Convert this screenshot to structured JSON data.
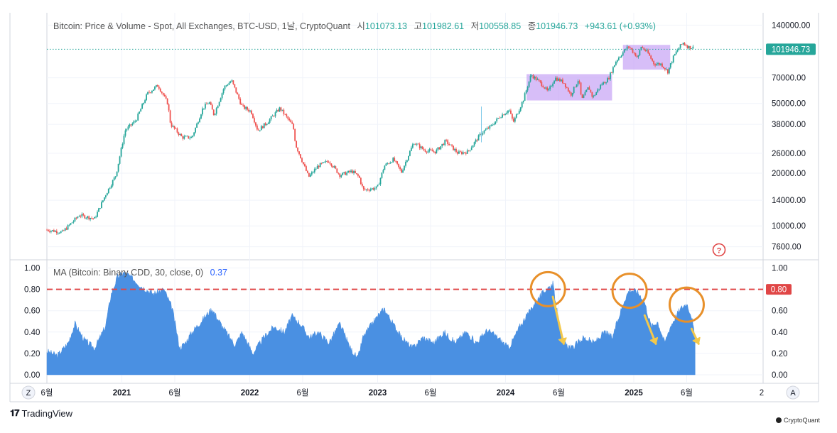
{
  "header": {
    "title": "Bitcoin: Price & Volume - Spot, All Exchanges, BTC-USD, 1날, CryptoQuant",
    "open_label": "시",
    "open": "101073.13",
    "high_label": "고",
    "high": "101982.61",
    "low_label": "저",
    "low": "100558.85",
    "close_label": "종",
    "close": "101946.73",
    "change": "+943.61 (+0.93%)"
  },
  "indicator": {
    "label": "MA (Bitcoin: Binary CDD, 30, close, 0)",
    "value": "0.37"
  },
  "price_badge": "101946.73",
  "threshold_badge": "0.80",
  "branding": {
    "tradingview": "TradingView",
    "cryptoquant": "CryptoQuant"
  },
  "controls": {
    "zoom": "Z",
    "auto": "A"
  },
  "colors": {
    "up": "#26a69a",
    "down": "#ef5350",
    "area": "#4a90e2",
    "highlight": "#c9a8f5",
    "circle": "#e8902a",
    "arrow": "#f3c84b",
    "threshold": "#e04646",
    "price_line": "#26a69a"
  },
  "chart_data": [
    {
      "type": "line",
      "title": "Bitcoin: Price & Volume - Spot, All Exchanges, BTC-USD, 1날, CryptoQuant",
      "scale": "log",
      "y_ticks": [
        140000,
        70000,
        50000,
        38000,
        26000,
        20000,
        14000,
        10000,
        7600
      ],
      "y_tick_labels": [
        "140000.00",
        "70000.00",
        "50000.00",
        "38000.00",
        "26000.00",
        "20000.00",
        "14000.00",
        "10000.00",
        "7600.00"
      ],
      "ylim": [
        6900,
        150000
      ],
      "x": [
        "2020-06-01",
        "2020-07-15",
        "2020-09-01",
        "2020-10-15",
        "2020-11-15",
        "2020-12-15",
        "2021-01-10",
        "2021-02-10",
        "2021-03-15",
        "2021-04-14",
        "2021-05-12",
        "2021-05-20",
        "2021-06-22",
        "2021-07-20",
        "2021-08-20",
        "2021-09-07",
        "2021-09-21",
        "2021-10-20",
        "2021-11-10",
        "2021-12-10",
        "2022-01-05",
        "2022-01-24",
        "2022-02-20",
        "2022-03-28",
        "2022-05-05",
        "2022-05-12",
        "2022-06-18",
        "2022-07-15",
        "2022-08-15",
        "2022-09-15",
        "2022-10-20",
        "2022-11-09",
        "2022-11-21",
        "2022-12-31",
        "2023-01-20",
        "2023-02-15",
        "2023-03-10",
        "2023-04-14",
        "2023-05-15",
        "2023-06-15",
        "2023-07-14",
        "2023-08-18",
        "2023-09-15",
        "2023-10-25",
        "2023-11-20",
        "2023-12-15",
        "2024-01-11",
        "2024-01-23",
        "2024-02-20",
        "2024-03-14",
        "2024-04-15",
        "2024-05-01",
        "2024-05-21",
        "2024-06-15",
        "2024-07-05",
        "2024-07-28",
        "2024-08-05",
        "2024-08-25",
        "2024-09-06",
        "2024-09-30",
        "2024-10-20",
        "2024-11-12",
        "2024-12-05",
        "2024-12-17",
        "2025-01-13",
        "2025-01-21",
        "2025-02-10",
        "2025-02-28",
        "2025-03-20",
        "2025-04-08",
        "2025-04-25",
        "2025-05-10",
        "2025-05-22",
        "2025-06-05",
        "2025-06-20"
      ],
      "series": [
        {
          "values": [
            9500,
            9200,
            11500,
            11000,
            15000,
            19500,
            35000,
            40000,
            57000,
            63500,
            50000,
            38000,
            32000,
            32000,
            47000,
            51000,
            43000,
            62000,
            67500,
            48000,
            45000,
            35000,
            39000,
            47000,
            37000,
            29000,
            19000,
            22000,
            23500,
            19500,
            20500,
            19000,
            16000,
            16500,
            22000,
            24000,
            20300,
            30000,
            27000,
            26500,
            30500,
            26000,
            26500,
            34000,
            37000,
            42000,
            46000,
            39000,
            52000,
            73000,
            64000,
            58000,
            70000,
            66000,
            56000,
            69000,
            52000,
            62000,
            54000,
            64000,
            69000,
            88000,
            100000,
            106000,
            91000,
            106000,
            97000,
            84000,
            84000,
            76000,
            93000,
            104000,
            111000,
            105000,
            104000
          ]
        }
      ],
      "highlights": [
        {
          "x_start": "2024-03-01",
          "x_end": "2024-10-31",
          "y_low": 52000,
          "y_high": 73500
        },
        {
          "x_start": "2024-12-01",
          "x_end": "2025-04-15",
          "y_low": 78000,
          "y_high": 108000
        }
      ],
      "last_price": 101946.73,
      "annotation": "?"
    },
    {
      "type": "area",
      "title": "MA (Bitcoin: Binary CDD, 30, close, 0)",
      "y_ticks": [
        1.0,
        0.8,
        0.6,
        0.4,
        0.2,
        0.0
      ],
      "y_tick_labels_left": [
        "1.00",
        "0.80",
        "0.60",
        "0.40",
        "0.20",
        "0.00"
      ],
      "y_tick_labels_right": [
        "1.00",
        "0.80",
        "0.60",
        "0.40",
        "0.20",
        "0.00"
      ],
      "ylim": [
        -0.04,
        1.05
      ],
      "threshold": 0.8,
      "x": [
        "2020-06-01",
        "2020-07-01",
        "2020-08-01",
        "2020-08-20",
        "2020-09-15",
        "2020-10-15",
        "2020-11-15",
        "2020-12-01",
        "2020-12-20",
        "2021-01-10",
        "2021-02-01",
        "2021-03-01",
        "2021-04-01",
        "2021-05-01",
        "2021-05-25",
        "2021-06-15",
        "2021-07-01",
        "2021-07-20",
        "2021-08-15",
        "2021-09-15",
        "2021-10-15",
        "2021-11-05",
        "2021-11-20",
        "2021-12-10",
        "2022-01-10",
        "2022-02-10",
        "2022-03-10",
        "2022-04-10",
        "2022-05-01",
        "2022-05-25",
        "2022-06-20",
        "2022-07-15",
        "2022-08-15",
        "2022-09-15",
        "2022-10-15",
        "2022-11-05",
        "2022-11-20",
        "2022-12-10",
        "2023-01-01",
        "2023-01-20",
        "2023-02-10",
        "2023-03-10",
        "2023-04-10",
        "2023-05-10",
        "2023-06-10",
        "2023-07-10",
        "2023-08-10",
        "2023-09-10",
        "2023-10-10",
        "2023-11-10",
        "2023-12-10",
        "2024-01-10",
        "2024-02-10",
        "2024-03-01",
        "2024-03-20",
        "2024-04-05",
        "2024-04-25",
        "2024-05-15",
        "2024-06-10",
        "2024-07-10",
        "2024-08-10",
        "2024-09-10",
        "2024-10-10",
        "2024-11-01",
        "2024-11-20",
        "2024-12-05",
        "2024-12-20",
        "2025-01-10",
        "2025-01-30",
        "2025-02-20",
        "2025-03-10",
        "2025-03-30",
        "2025-04-15",
        "2025-05-01",
        "2025-05-15",
        "2025-06-01",
        "2025-06-15",
        "2025-06-25"
      ],
      "series": [
        {
          "name": "MA (Bitcoin: Binary CDD, 30, close, 0)",
          "values": [
            0.22,
            0.18,
            0.3,
            0.48,
            0.33,
            0.25,
            0.45,
            0.75,
            0.92,
            0.96,
            0.9,
            0.82,
            0.76,
            0.8,
            0.62,
            0.25,
            0.3,
            0.4,
            0.5,
            0.62,
            0.45,
            0.35,
            0.28,
            0.4,
            0.2,
            0.35,
            0.45,
            0.4,
            0.55,
            0.48,
            0.35,
            0.4,
            0.3,
            0.48,
            0.25,
            0.15,
            0.35,
            0.45,
            0.55,
            0.62,
            0.5,
            0.35,
            0.25,
            0.35,
            0.3,
            0.4,
            0.3,
            0.4,
            0.3,
            0.42,
            0.35,
            0.25,
            0.45,
            0.55,
            0.65,
            0.72,
            0.8,
            0.85,
            0.3,
            0.25,
            0.35,
            0.3,
            0.4,
            0.35,
            0.55,
            0.7,
            0.8,
            0.78,
            0.7,
            0.45,
            0.5,
            0.3,
            0.45,
            0.55,
            0.62,
            0.67,
            0.55,
            0.33
          ]
        }
      ],
      "circles": [
        "2024-05-01",
        "2024-12-20",
        "2025-06-01"
      ],
      "arrows": [
        [
          "2024-05-15",
          "2024-06-15"
        ],
        [
          "2025-02-01",
          "2025-03-05"
        ],
        [
          "2025-06-15",
          "2025-07-05"
        ]
      ]
    }
  ],
  "x_axis": {
    "labels": [
      "6월",
      "2021",
      "6월",
      "2022",
      "6월",
      "2023",
      "6월",
      "2024",
      "6월",
      "2025",
      "6월",
      "2"
    ],
    "dates": [
      "2020-06-01",
      "2021-01-01",
      "2021-06-01",
      "2022-01-01",
      "2022-06-01",
      "2023-01-01",
      "2023-06-01",
      "2024-01-01",
      "2024-06-01",
      "2025-01-01",
      "2025-06-01",
      "2026-01-01"
    ],
    "bold": [
      false,
      true,
      false,
      true,
      false,
      true,
      false,
      true,
      false,
      true,
      false,
      false
    ]
  }
}
